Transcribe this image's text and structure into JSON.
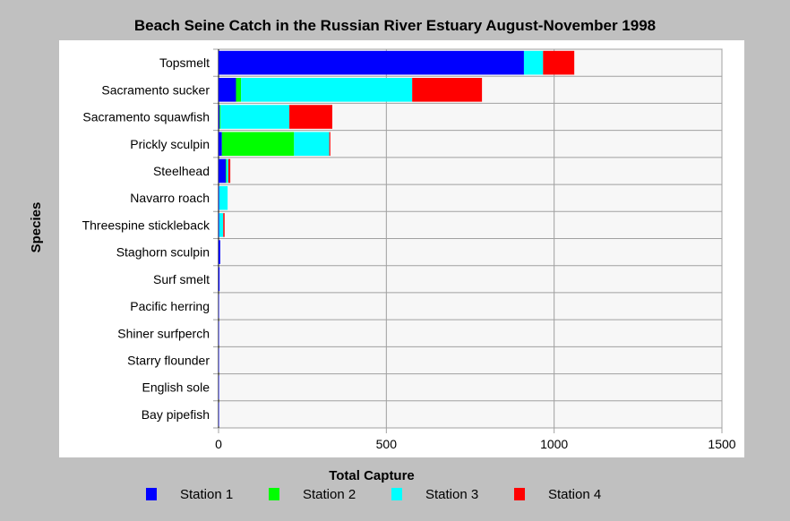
{
  "chart_data": {
    "type": "bar",
    "orientation": "horizontal",
    "stacked": true,
    "title": "Beach Seine Catch in the Russian River Estuary August-November 1998",
    "xlabel": "Total Capture",
    "ylabel": "Species",
    "xlim": [
      0,
      1500
    ],
    "xticks": [
      0,
      500,
      1000,
      1500
    ],
    "grid": true,
    "legend_position": "bottom",
    "categories": [
      "Topsmelt",
      "Sacramento sucker",
      "Sacramento squawfish",
      "Prickly sculpin",
      "Steelhead",
      "Navarro roach",
      "Threespine stickleback",
      "Staghorn sculpin",
      "Surf smelt",
      "Pacific herring",
      "Shiner surfperch",
      "Starry flounder",
      "English sole",
      "Bay pipefish"
    ],
    "series": [
      {
        "name": "Station 1",
        "color": "#0000ff",
        "values": [
          910,
          52,
          3,
          10,
          22,
          2,
          2,
          5,
          3,
          1,
          1,
          1,
          1,
          1
        ]
      },
      {
        "name": "Station 2",
        "color": "#00ff00",
        "values": [
          0,
          15,
          3,
          215,
          2,
          0,
          0,
          0,
          0,
          0,
          0,
          0,
          0,
          0
        ]
      },
      {
        "name": "Station 3",
        "color": "#00ffff",
        "values": [
          57,
          510,
          205,
          105,
          5,
          25,
          12,
          0,
          0,
          0,
          0,
          0,
          0,
          0
        ]
      },
      {
        "name": "Station 4",
        "color": "#ff0000",
        "values": [
          93,
          208,
          128,
          3,
          6,
          0,
          4,
          0,
          0,
          0,
          0,
          0,
          0,
          0
        ]
      }
    ]
  }
}
